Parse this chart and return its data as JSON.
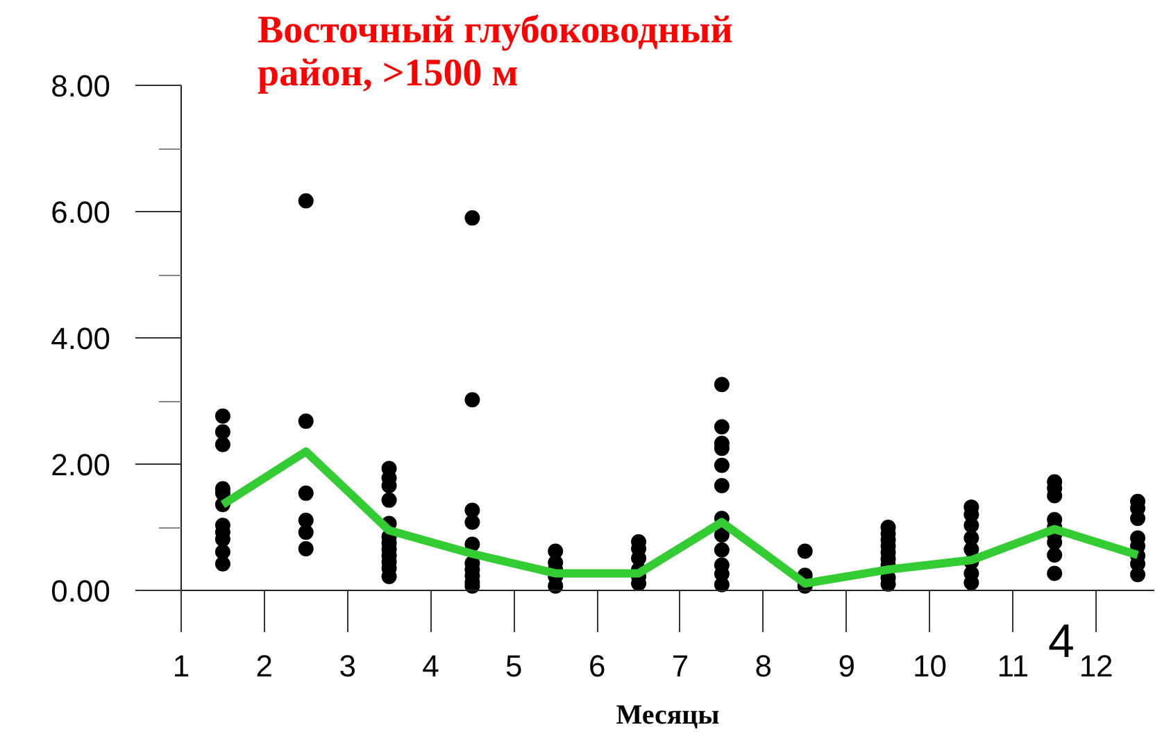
{
  "chart_data": {
    "type": "scatter",
    "title": "Восточный глубоководный район, >1500 м",
    "xlabel": "Месяцы",
    "xlim": [
      1,
      12.7
    ],
    "xticks": [
      1,
      2,
      3,
      4,
      5,
      6,
      7,
      8,
      9,
      10,
      11,
      12
    ],
    "ylim": [
      0,
      8
    ],
    "yticks": [
      {
        "value": 0,
        "label": "0.00"
      },
      {
        "value": 1,
        "label": null
      },
      {
        "value": 2,
        "label": "2.00"
      },
      {
        "value": 3,
        "label": null
      },
      {
        "value": 4,
        "label": "4.00"
      },
      {
        "value": 5,
        "label": null
      },
      {
        "value": 6,
        "label": "6.00"
      },
      {
        "value": 7,
        "label": null
      },
      {
        "value": 8,
        "label": "8.00"
      }
    ],
    "annotations": [
      "4"
    ],
    "series": [
      {
        "type": "scatter",
        "marker": "circle",
        "color": "#000000",
        "x": [
          1.5,
          1.5,
          1.5,
          1.5,
          1.5,
          1.5,
          1.5,
          1.5,
          1.5,
          1.5,
          1.5,
          2.5,
          2.5,
          2.5,
          2.5,
          2.5,
          2.5,
          3.5,
          3.5,
          3.5,
          3.5,
          3.5,
          3.5,
          3.5,
          3.5,
          3.5,
          3.5,
          3.5,
          3.5,
          4.5,
          4.5,
          4.5,
          4.5,
          4.5,
          4.5,
          4.5,
          4.5,
          4.5,
          4.5,
          5.5,
          5.5,
          5.5,
          5.5,
          5.5,
          6.5,
          6.5,
          6.5,
          6.5,
          6.5,
          6.5,
          7.5,
          7.5,
          7.5,
          7.5,
          7.5,
          7.5,
          7.5,
          7.5,
          7.5,
          7.5,
          7.5,
          7.5,
          8.5,
          8.5,
          8.5,
          9.5,
          9.5,
          9.5,
          9.5,
          9.5,
          9.5,
          9.5,
          9.5,
          9.5,
          10.5,
          10.5,
          10.5,
          10.5,
          10.5,
          10.5,
          10.5,
          10.5,
          11.5,
          11.5,
          11.5,
          11.5,
          11.5,
          11.5,
          11.5,
          11.5,
          11.5,
          12.5,
          12.5,
          12.5,
          12.5,
          12.5,
          12.5,
          12.5,
          12.5
        ],
        "values": [
          2.76,
          2.51,
          2.31,
          1.61,
          1.54,
          1.36,
          1.03,
          0.92,
          0.81,
          0.61,
          0.42,
          6.17,
          2.68,
          1.54,
          1.11,
          0.92,
          0.66,
          1.93,
          1.78,
          1.66,
          1.43,
          1.06,
          0.85,
          0.75,
          0.65,
          0.55,
          0.45,
          0.35,
          0.22,
          5.9,
          3.02,
          1.27,
          1.08,
          0.73,
          0.43,
          0.33,
          0.23,
          0.13,
          0.07,
          0.62,
          0.44,
          0.33,
          0.22,
          0.07,
          0.77,
          0.66,
          0.51,
          0.33,
          0.22,
          0.11,
          3.26,
          2.59,
          2.33,
          2.25,
          1.98,
          1.66,
          1.14,
          0.88,
          0.64,
          0.4,
          0.26,
          0.09,
          0.62,
          0.24,
          0.07,
          1.0,
          0.9,
          0.8,
          0.7,
          0.6,
          0.5,
          0.4,
          0.2,
          0.1,
          1.32,
          1.2,
          1.03,
          0.83,
          0.65,
          0.45,
          0.27,
          0.12,
          1.72,
          1.62,
          1.5,
          1.12,
          1.0,
          0.88,
          0.76,
          0.56,
          0.27,
          1.41,
          1.3,
          1.14,
          0.83,
          0.7,
          0.55,
          0.42,
          0.25
        ]
      },
      {
        "type": "line",
        "color": "#33cc33",
        "x": [
          1.5,
          2.5,
          3.5,
          4.5,
          5.5,
          6.5,
          7.5,
          8.5,
          9.5,
          10.5,
          11.5,
          12.5
        ],
        "values": [
          1.36,
          2.2,
          0.95,
          0.58,
          0.27,
          0.27,
          1.08,
          0.11,
          0.33,
          0.48,
          0.97,
          0.56
        ]
      }
    ]
  }
}
